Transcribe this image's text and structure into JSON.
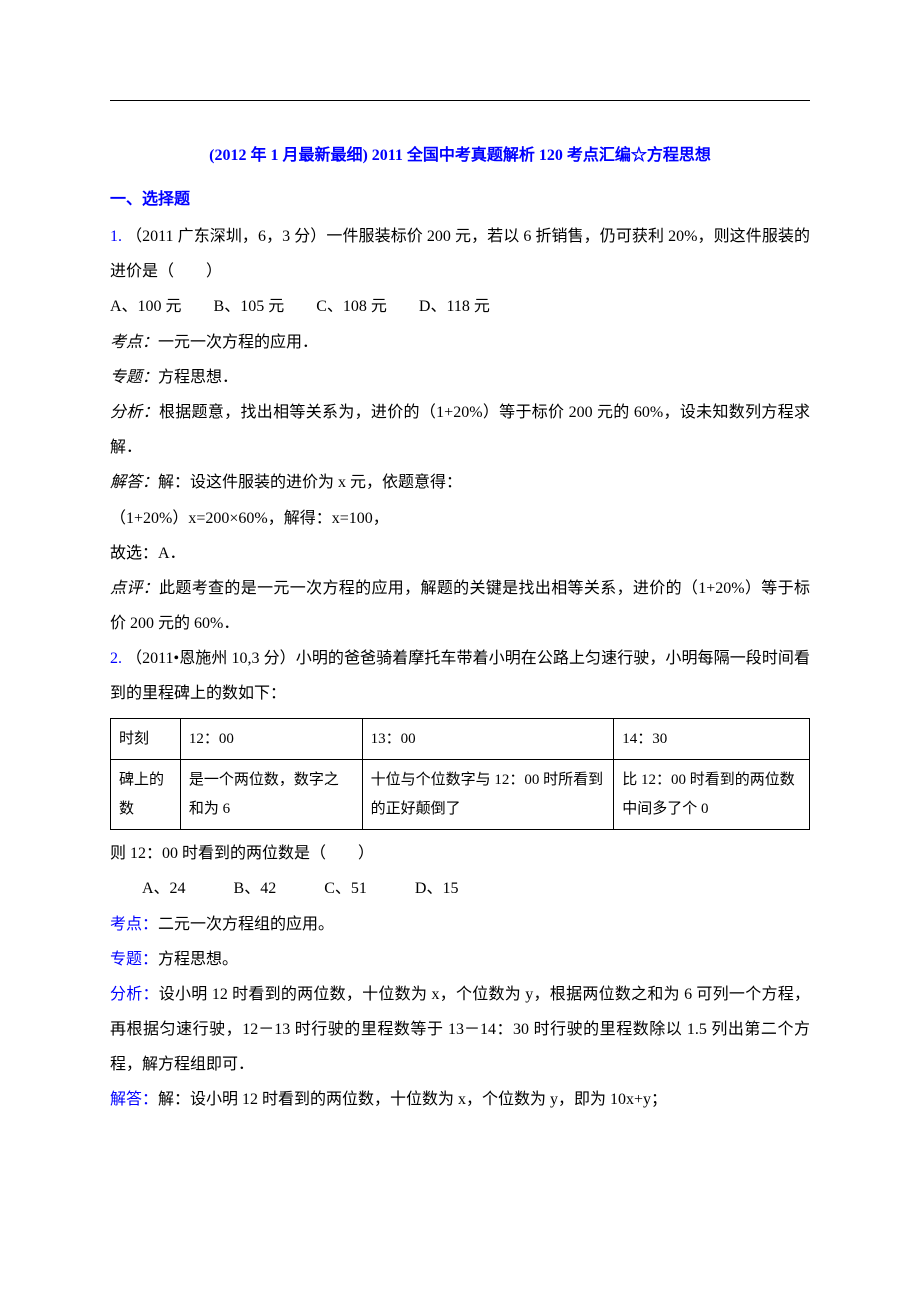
{
  "colors": {
    "accent": "#0000ff",
    "text": "#000000",
    "background": "#ffffff",
    "border": "#000000"
  },
  "typography": {
    "body_fontsize_pt": 12,
    "title_fontsize_pt": 12,
    "line_height": 2.2,
    "font_family": "SimSun"
  },
  "title": "(2012 年 1 月最新最细) 2011 全国中考真题解析 120 考点汇编☆方程思想",
  "section1": {
    "heading": "一、选择题"
  },
  "q1": {
    "number": "1.",
    "source": "（2011 广东深圳，6，3 分）",
    "stem": "一件服装标价 200 元，若以 6 折销售，仍可获利 20%，则这件服装的进价是（　　）",
    "options": "A、100 元　　B、105 元　　C、108 元　　D、118 元",
    "kaodian_label": "考点：",
    "kaodian": "一元一次方程的应用．",
    "zhuanti_label": "专题：",
    "zhuanti": "方程思想．",
    "fenxi_label": "分析：",
    "fenxi": "根据题意，找出相等关系为，进价的（1+20%）等于标价 200 元的 60%，设未知数列方程求解．",
    "jieda_label": "解答：",
    "jieda_l1": "解：设这件服装的进价为 x 元，依题意得：",
    "jieda_l2": "（1+20%）x=200×60%，解得：x=100，",
    "jieda_l3": "故选：A．",
    "dianping_label": "点评：",
    "dianping": "此题考查的是一元一次方程的应用，解题的关键是找出相等关系，进价的（1+20%）等于标价 200 元的 60%．"
  },
  "q2": {
    "number": "2.",
    "source": "（2011•恩施州 10,3 分）",
    "stem": "小明的爸爸骑着摩托车带着小明在公路上匀速行驶，小明每隔一段时间看到的里程碑上的数如下：",
    "table": {
      "type": "table",
      "columns": [
        "时刻",
        "12：00",
        "13：00",
        "14：30"
      ],
      "row_label": "碑上的数",
      "cells": [
        "是一个两位数，数字之和为 6",
        "十位与个位数字与 12：00 时所看到的正好颠倒了",
        "比 12：00 时看到的两位数中间多了个 0"
      ],
      "col_widths_pct": [
        10,
        26,
        36,
        28
      ],
      "border_color": "#000000"
    },
    "after_table": "则 12：00 时看到的两位数是（　　）",
    "options": "　　A、24　　　B、42　　　C、51　　　D、15",
    "kaodian_label": "考点：",
    "kaodian": "二元一次方程组的应用。",
    "zhuanti_label": "专题：",
    "zhuanti": "方程思想。",
    "fenxi_label": "分析：",
    "fenxi": "设小明 12 时看到的两位数，十位数为 x，个位数为 y，根据两位数之和为 6 可列一个方程，再根据匀速行驶，12－13 时行驶的里程数等于 13－14：30 时行驶的里程数除以 1.5 列出第二个方程，解方程组即可．",
    "jieda_label": "解答：",
    "jieda": "解：设小明 12 时看到的两位数，十位数为 x，个位数为 y，即为 10x+y；"
  }
}
